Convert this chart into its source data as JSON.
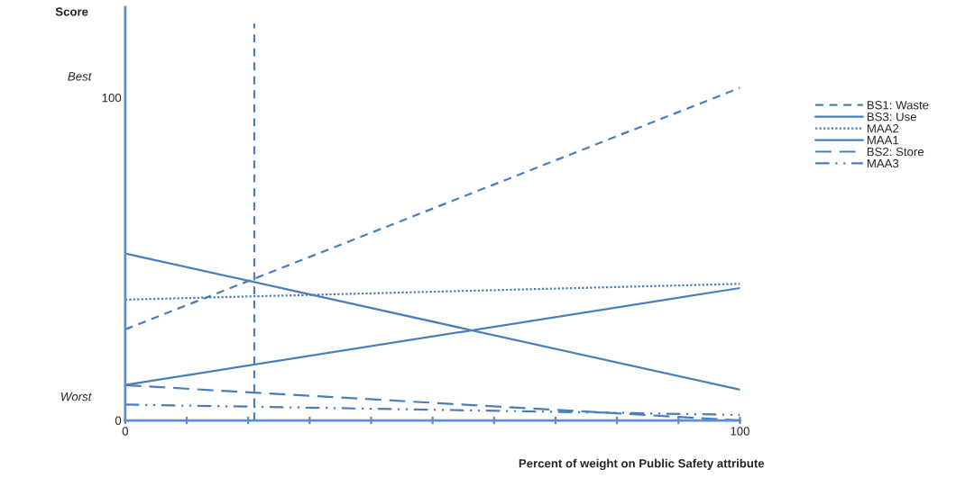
{
  "chart_data": {
    "type": "line",
    "xlabel": "Percent of weight on Public Safety attribute",
    "ylabel": "Score",
    "x": [
      0,
      100
    ],
    "series": [
      {
        "name": "BS1: Waste",
        "color": "#4a7ebb",
        "line_style": "dashed",
        "values": [
          28.2,
          103
        ]
      },
      {
        "name": "BS3: Use",
        "color": "#4a7ebb",
        "line_style": "solid",
        "values": [
          51.7,
          9.5
        ]
      },
      {
        "name": "MAA2",
        "color": "#4a7ebb",
        "line_style": "dotted",
        "values": [
          37.4,
          42.3
        ]
      },
      {
        "name": "MAA1",
        "color": "#4a7ebb",
        "line_style": "solid",
        "values": [
          11.0,
          41.0
        ]
      },
      {
        "name": "BS2: Store",
        "color": "#4a7ebb",
        "line_style": "longdash",
        "values": [
          10.9,
          0
        ]
      },
      {
        "name": "MAA3",
        "color": "#4a7ebb",
        "line_style": "dashdotdot",
        "values": [
          4.9,
          1.7
        ]
      }
    ],
    "xlim": [
      0,
      100
    ],
    "ylim": [
      0,
      128
    ],
    "xticks": [
      0,
      {
        "value": 10,
        "label": null
      },
      {
        "value": 20,
        "label": null
      },
      {
        "value": 30,
        "label": null
      },
      {
        "value": 40,
        "label": null
      },
      {
        "value": 50,
        "label": null
      },
      {
        "value": 60,
        "label": null
      },
      {
        "value": 70,
        "label": null
      },
      {
        "value": 80,
        "label": null
      },
      {
        "value": 90,
        "label": null
      },
      100
    ],
    "yticks": [
      0,
      100
    ],
    "ref_lines": [
      {
        "axis": "x",
        "value": 21,
        "color": "#4a7ebb",
        "line_style": "dashed"
      }
    ],
    "annotations": [
      "Best",
      "Worst"
    ],
    "legend": "right",
    "grid": false,
    "marker": "none"
  }
}
